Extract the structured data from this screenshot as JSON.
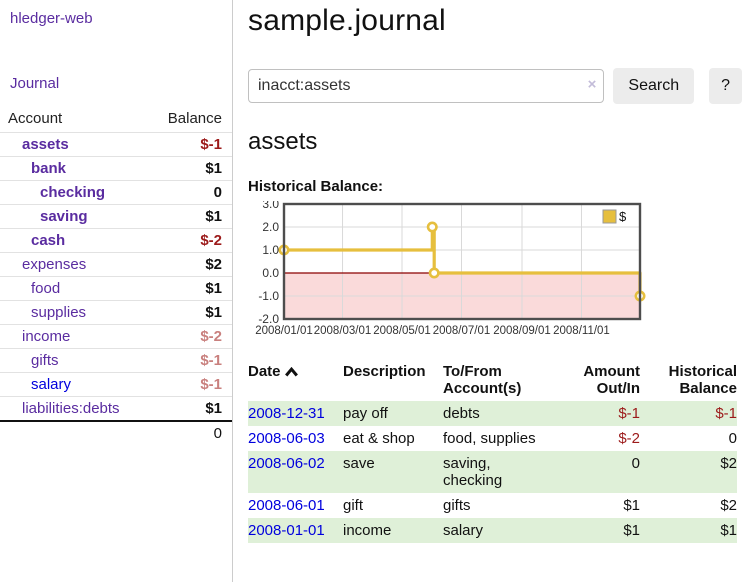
{
  "app": {
    "name": "hledger-web"
  },
  "sidebar": {
    "journal_link": "Journal",
    "accounts_table": {
      "account_header": "Account",
      "balance_header": "Balance",
      "rows": [
        {
          "name": "assets",
          "indent": 1,
          "bold": true,
          "balance": "$-1",
          "balance_style": "neg",
          "link_style": "purple"
        },
        {
          "name": "bank",
          "indent": 2,
          "bold": true,
          "balance": "$1",
          "balance_style": "pos",
          "link_style": "purple"
        },
        {
          "name": "checking",
          "indent": 3,
          "bold": true,
          "balance": "0",
          "balance_style": "pos",
          "link_style": "purple"
        },
        {
          "name": "saving",
          "indent": 3,
          "bold": true,
          "balance": "$1",
          "balance_style": "pos",
          "link_style": "purple"
        },
        {
          "name": "cash",
          "indent": 2,
          "bold": true,
          "balance": "$-2",
          "balance_style": "neg",
          "link_style": "purple"
        },
        {
          "name": "expenses",
          "indent": 1,
          "bold": false,
          "balance": "$2",
          "balance_style": "pos",
          "link_style": "purple"
        },
        {
          "name": "food",
          "indent": 2,
          "bold": false,
          "balance": "$1",
          "balance_style": "pos",
          "link_style": "purple"
        },
        {
          "name": "supplies",
          "indent": 2,
          "bold": false,
          "balance": "$1",
          "balance_style": "pos",
          "link_style": "purple"
        },
        {
          "name": "income",
          "indent": 1,
          "bold": false,
          "balance": "$-2",
          "balance_style": "negmut",
          "link_style": "purple"
        },
        {
          "name": "gifts",
          "indent": 2,
          "bold": false,
          "balance": "$-1",
          "balance_style": "negmut",
          "link_style": "purple"
        },
        {
          "name": "salary",
          "indent": 2,
          "bold": false,
          "balance": "$-1",
          "balance_style": "negmut",
          "link_style": "blue"
        },
        {
          "name": "liabilities:debts",
          "indent": 1,
          "bold": false,
          "balance": "$1",
          "balance_style": "pos",
          "link_style": "purple"
        }
      ],
      "total": "0"
    }
  },
  "header": {
    "title": "sample.journal"
  },
  "search": {
    "value": "inacct:assets",
    "clear_icon": "×",
    "button_label": "Search",
    "help_label": "?"
  },
  "account_page": {
    "title": "assets",
    "chart_label": "Historical Balance:"
  },
  "chart_data": {
    "type": "line",
    "step": true,
    "title": "Historical Balance:",
    "series": [
      {
        "name": "$",
        "points": [
          [
            "2008-01-01",
            1
          ],
          [
            "2008-06-01",
            2
          ],
          [
            "2008-06-03",
            0
          ],
          [
            "2008-12-31",
            -1
          ]
        ]
      }
    ],
    "x_domain": [
      "2008-01-01",
      "2008-12-31"
    ],
    "ylim": [
      -2,
      3
    ],
    "yticks": [
      "3.0",
      "2.0",
      "1.0",
      "0.0",
      "-1.0",
      "-2.0"
    ],
    "ytick_values": [
      3,
      2,
      1,
      0,
      -1,
      -2
    ],
    "xticks": [
      "2008/01/01",
      "2008/03/01",
      "2008/05/01",
      "2008/07/01",
      "2008/09/01",
      "2008/11/01"
    ],
    "xtick_dates": [
      "2008-01-01",
      "2008-03-01",
      "2008-05-01",
      "2008-07-01",
      "2008-09-01",
      "2008-11-01"
    ],
    "legend": "$",
    "legend_position": "top-right",
    "grid": true,
    "negative_region_shaded": true
  },
  "register_table": {
    "headers": {
      "date": "Date",
      "description": "Description",
      "account": "To/From\nAccount(s)",
      "amount": "Amount\nOut/In",
      "balance": "Historical\nBalance"
    },
    "sort_icon": "chevron-up",
    "rows": [
      {
        "date": "2008-12-31",
        "description": "pay off",
        "accounts": "debts",
        "amount": "$-1",
        "amount_style": "neg",
        "balance": "$-1",
        "balance_style": "neg",
        "shaded": true
      },
      {
        "date": "2008-06-03",
        "description": "eat & shop",
        "accounts": "food, supplies",
        "amount": "$-2",
        "amount_style": "neg",
        "balance": "0",
        "balance_style": "pos",
        "shaded": false
      },
      {
        "date": "2008-06-02",
        "description": "save",
        "accounts": "saving,\nchecking",
        "amount": "0",
        "amount_style": "pos",
        "balance": "$2",
        "balance_style": "pos",
        "shaded": true
      },
      {
        "date": "2008-06-01",
        "description": "gift",
        "accounts": "gifts",
        "amount": "$1",
        "amount_style": "pos",
        "balance": "$2",
        "balance_style": "pos",
        "shaded": false
      },
      {
        "date": "2008-01-01",
        "description": "income",
        "accounts": "salary",
        "amount": "$1",
        "amount_style": "pos",
        "balance": "$1",
        "balance_style": "pos",
        "shaded": true
      }
    ]
  },
  "colors": {
    "link_purple": "#5a2ca0",
    "link_blue": "#0000dd",
    "negative_red": "#9c1a1a",
    "negative_muted": "#c9807e",
    "row_green": "#dff0d8",
    "chart_gold": "#e6bf3e",
    "chart_negative_fill": "#fadada",
    "chart_zero_line": "#8b0000",
    "chart_grid": "#d9d9d9",
    "chart_border": "#4d4d4d"
  }
}
